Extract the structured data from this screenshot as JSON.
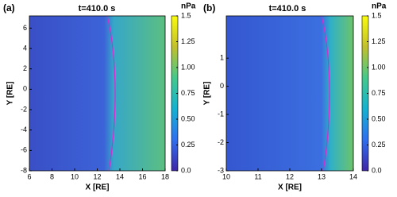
{
  "chart_data": [
    {
      "type": "heatmap",
      "panel_label": "(a)",
      "title": "t=410.0 s",
      "x_label": "X [RE]",
      "y_label": "Y [RE]",
      "xlim": [
        6,
        18
      ],
      "xticks": [
        6,
        8,
        10,
        12,
        14,
        16,
        18
      ],
      "ylim": [
        -8,
        7.2
      ],
      "yticks": [
        -8,
        -6,
        -4,
        -2,
        0,
        2,
        4,
        6
      ],
      "colorbar": {
        "label": "nPa",
        "lim": [
          0,
          1.5
        ],
        "ticks": [
          {
            "value": 0,
            "label": "0.0"
          },
          0.25,
          {
            "value": 0.5,
            "label": "0.50"
          },
          0.75,
          {
            "value": 1,
            "label": "1.00"
          },
          1.25,
          1.5
        ],
        "colormap": [
          "#3e26a8",
          "#2f6ff0",
          "#14b2d1",
          "#44c98b",
          "#c2c02b",
          "#f9fb0e"
        ]
      },
      "boundary_color": "#d62ad0"
    },
    {
      "type": "heatmap",
      "panel_label": "(b)",
      "title": "t=410.0 s",
      "x_label": "X [RE]",
      "y_label": "Y [RE]",
      "xlim": [
        10,
        14
      ],
      "xticks": [
        10,
        11,
        12,
        13,
        14
      ],
      "ylim": [
        -3,
        2.5
      ],
      "yticks": [
        -3,
        -2,
        -1,
        0,
        1
      ],
      "colorbar": {
        "label": "nPa",
        "lim": [
          0,
          1.5
        ],
        "ticks": [
          {
            "value": 0,
            "label": "0.0"
          },
          0.25,
          {
            "value": 0.5,
            "label": "0.50"
          },
          0.75,
          {
            "value": 1,
            "label": "1.00"
          },
          1.25,
          1.5
        ],
        "colormap": [
          "#3e26a8",
          "#2f6ff0",
          "#14b2d1",
          "#44c98b",
          "#c2c02b",
          "#f9fb0e"
        ]
      },
      "boundary_color": "#d62ad0"
    }
  ]
}
